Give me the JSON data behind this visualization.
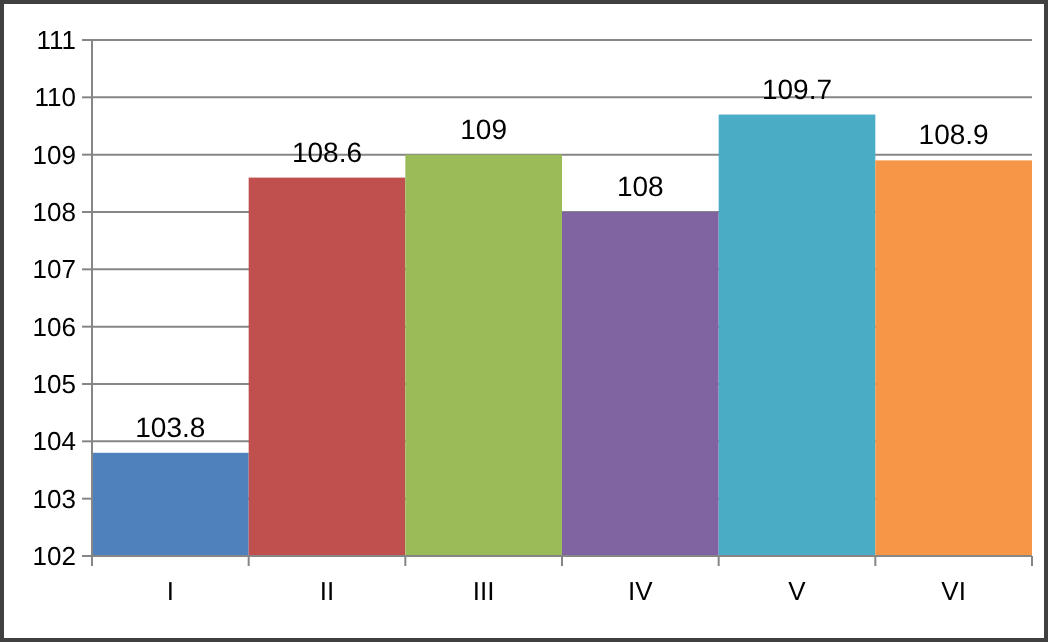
{
  "chart_data": {
    "type": "bar",
    "categories": [
      "I",
      "II",
      "III",
      "IV",
      "V",
      "VI"
    ],
    "values": [
      103.8,
      108.6,
      109,
      108,
      109.7,
      108.9
    ],
    "colors": [
      "#4f81bd",
      "#c0504d",
      "#9bbb59",
      "#8064a2",
      "#4bacc6",
      "#f79646"
    ],
    "ylim": [
      102,
      111
    ],
    "yticks": [
      102,
      103,
      104,
      105,
      106,
      107,
      108,
      109,
      110,
      111
    ],
    "grid": "y",
    "data_labels": true
  }
}
